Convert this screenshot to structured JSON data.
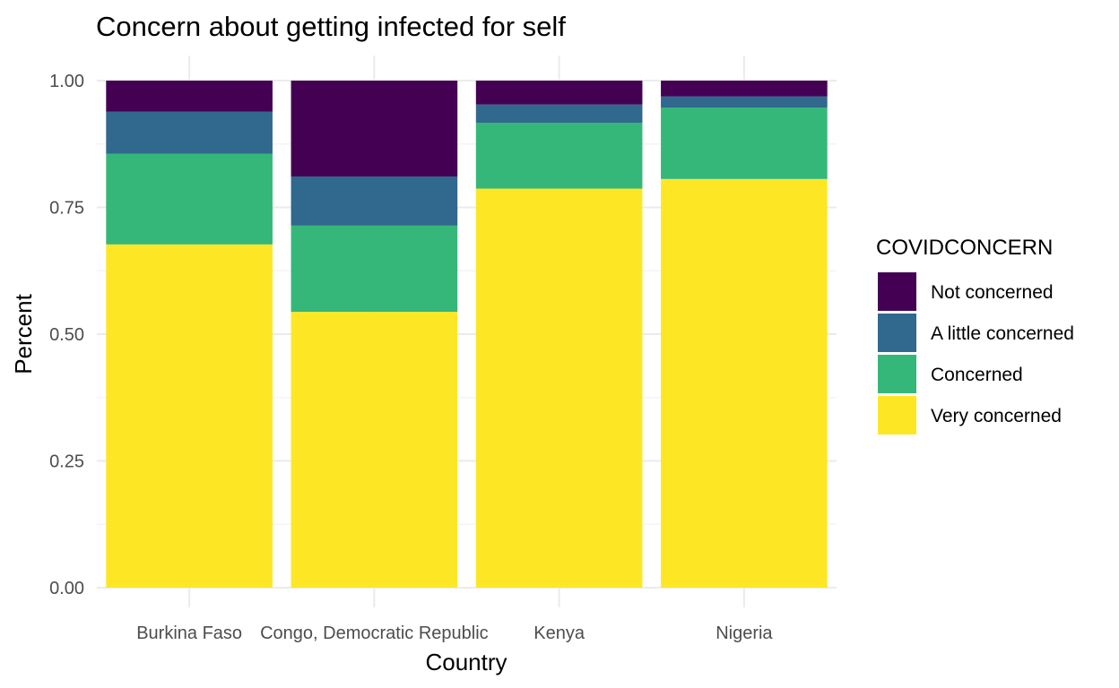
{
  "chart_data": {
    "type": "bar",
    "stacked": true,
    "title": "Concern about getting infected for self",
    "xlabel": "Country",
    "ylabel": "Percent",
    "ylim": [
      0,
      1
    ],
    "yticks": [
      "0.00",
      "0.25",
      "0.50",
      "0.75",
      "1.00"
    ],
    "ytick_values": [
      0,
      0.25,
      0.5,
      0.75,
      1.0
    ],
    "categories": [
      "Burkina Faso",
      "Congo, Democratic Republic",
      "Kenya",
      "Nigeria"
    ],
    "legend_title": "COVIDCONCERN",
    "legend_position": "right",
    "grid": true,
    "series": [
      {
        "name": "Very concerned",
        "color": "#fde725",
        "values": [
          0.677,
          0.544,
          0.787,
          0.806
        ]
      },
      {
        "name": "Concerned",
        "color": "#35b779",
        "values": [
          0.179,
          0.17,
          0.13,
          0.141
        ]
      },
      {
        "name": "A little concerned",
        "color": "#31688e",
        "values": [
          0.083,
          0.097,
          0.036,
          0.022
        ]
      },
      {
        "name": "Not concerned",
        "color": "#440154",
        "values": [
          0.061,
          0.189,
          0.047,
          0.031
        ]
      }
    ],
    "legend_order": [
      "Not concerned",
      "A little concerned",
      "Concerned",
      "Very concerned"
    ]
  }
}
